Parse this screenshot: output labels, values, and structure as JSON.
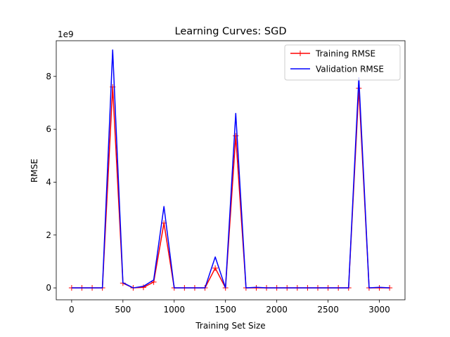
{
  "chart_data": {
    "type": "line",
    "title": "Learning Curves: SGD",
    "xlabel": "Training Set Size",
    "ylabel": "RMSE",
    "y_offset_label": "1e9",
    "xlim": [
      -150,
      3250
    ],
    "ylim": [
      -0.45,
      9.35
    ],
    "y_scale_multiplier": 1000000000,
    "xticks": [
      0,
      500,
      1000,
      1500,
      2000,
      2500,
      3000
    ],
    "yticks": [
      0,
      2,
      4,
      6,
      8
    ],
    "grid": false,
    "legend_position": "top-right",
    "x": [
      0,
      100,
      200,
      300,
      400,
      500,
      600,
      700,
      800,
      900,
      1000,
      1100,
      1200,
      1300,
      1400,
      1500,
      1600,
      1700,
      1800,
      1900,
      2000,
      2100,
      2200,
      2300,
      2400,
      2500,
      2600,
      2700,
      2800,
      2900,
      3000,
      3100
    ],
    "series": [
      {
        "name": "Training RMSE",
        "color": "#ff0000",
        "marker": "plus",
        "values": [
          0.0,
          0.0,
          0.0,
          0.0,
          7.6,
          0.18,
          0.0,
          0.02,
          0.22,
          2.45,
          0.0,
          0.0,
          0.0,
          0.0,
          0.75,
          0.0,
          5.75,
          0.0,
          0.0,
          0.0,
          0.0,
          0.0,
          0.0,
          0.0,
          0.0,
          0.0,
          0.0,
          0.0,
          7.55,
          0.0,
          0.0,
          0.0
        ]
      },
      {
        "name": "Validation RMSE",
        "color": "#0000ff",
        "marker": "none",
        "values": [
          0.0,
          0.0,
          0.0,
          0.0,
          9.0,
          0.2,
          0.0,
          0.06,
          0.3,
          3.08,
          0.0,
          0.0,
          0.0,
          0.0,
          1.17,
          0.0,
          6.6,
          0.0,
          0.02,
          0.0,
          0.0,
          0.0,
          0.0,
          0.0,
          0.0,
          0.0,
          0.0,
          0.0,
          7.95,
          0.0,
          0.02,
          0.0
        ]
      }
    ]
  }
}
